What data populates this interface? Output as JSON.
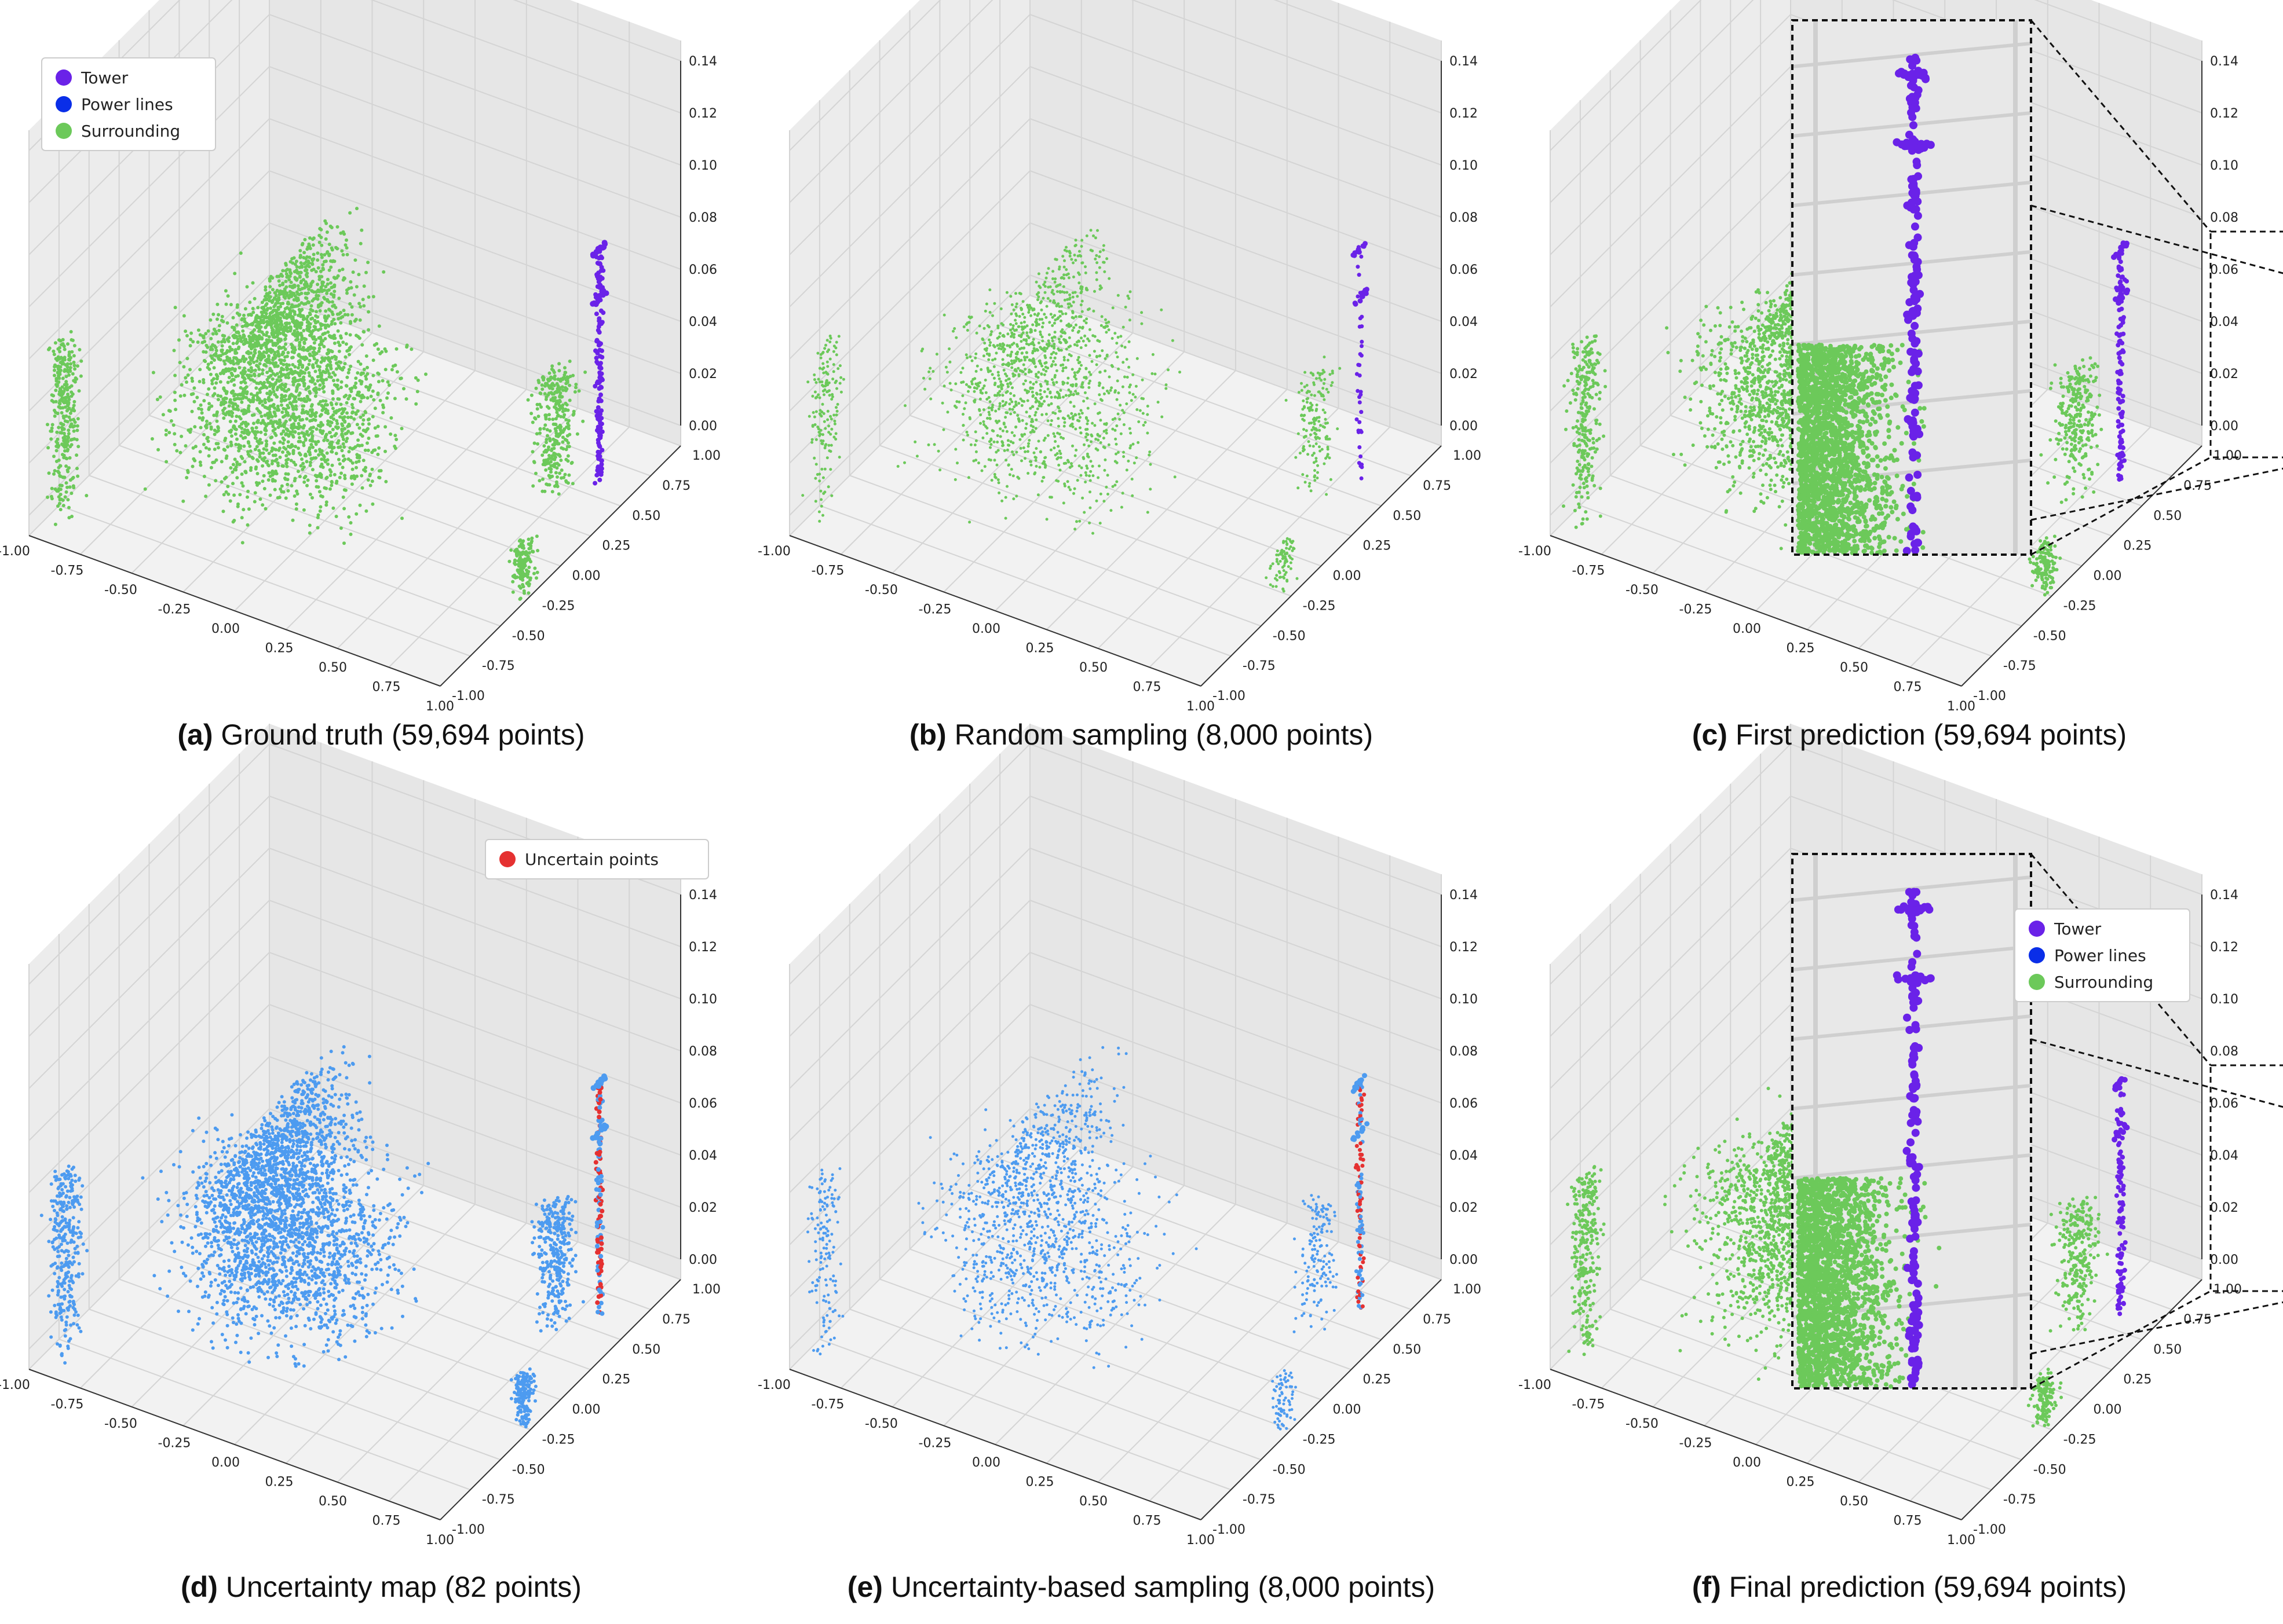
{
  "figure": {
    "colors": {
      "tower": "#6a22e8",
      "power_lines": "#0a2ee8",
      "surrounding": "#6cc95a",
      "blue_cloud": "#4d9bf0",
      "uncertain": "#e53131",
      "pane": "#ececec",
      "grid": "#d4d4d4"
    },
    "legend_main": [
      {
        "label": "Tower",
        "color": "#6a22e8"
      },
      {
        "label": "Power lines",
        "color": "#0a2ee8"
      },
      {
        "label": "Surrounding",
        "color": "#6cc95a"
      }
    ],
    "legend_uncertain": [
      {
        "label": "Uncertain points",
        "color": "#e53131"
      }
    ],
    "panels": [
      {
        "id": "a",
        "label": "(a)",
        "caption": "Ground truth (59,694 points)"
      },
      {
        "id": "b",
        "label": "(b)",
        "caption": "Random sampling (8,000 points)"
      },
      {
        "id": "c",
        "label": "(c)",
        "caption": "First prediction (59,694 points)"
      },
      {
        "id": "d",
        "label": "(d)",
        "caption": "Uncertainty map (82 points)"
      },
      {
        "id": "e",
        "label": "(e)",
        "caption": "Uncertainty-based sampling (8,000 points)"
      },
      {
        "id": "f",
        "label": "(f)",
        "caption": "Final prediction (59,694 points)"
      }
    ]
  },
  "chart_data": [
    {
      "type": "scatter",
      "panel": "a",
      "projection": "3d",
      "point_count": 59694,
      "series": [
        {
          "name": "Tower"
        },
        {
          "name": "Power lines"
        },
        {
          "name": "Surrounding"
        }
      ],
      "x_ticks": [
        "-1.00",
        "-0.75",
        "-0.50",
        "-0.25",
        "0.00",
        "0.25",
        "0.50",
        "0.75",
        "1.00"
      ],
      "y_ticks": [
        "-1.00",
        "-0.75",
        "-0.50",
        "-0.25",
        "0.00",
        "0.25",
        "0.50",
        "0.75",
        "1.00"
      ],
      "z_ticks": [
        "0.00",
        "0.02",
        "0.04",
        "0.06",
        "0.08",
        "0.10",
        "0.12",
        "0.14"
      ],
      "xlim": [
        -1,
        1
      ],
      "ylim": [
        -1,
        1
      ],
      "zlim": [
        0,
        0.14
      ],
      "grid": true,
      "legend": "top-left"
    },
    {
      "type": "scatter",
      "panel": "b",
      "projection": "3d",
      "point_count": 8000,
      "x_ticks": [
        "-1.00",
        "-0.75",
        "-0.50",
        "-0.25",
        "0.00",
        "0.25",
        "0.50",
        "0.75",
        "1.00"
      ],
      "y_ticks": [
        "-1.00",
        "-0.75",
        "-0.50",
        "-0.25",
        "0.00",
        "0.25",
        "0.50",
        "0.75",
        "1.00"
      ],
      "z_ticks": [
        "0.00",
        "0.02",
        "0.04",
        "0.06",
        "0.08",
        "0.10",
        "0.12",
        "0.14"
      ],
      "xlim": [
        -1,
        1
      ],
      "ylim": [
        -1,
        1
      ],
      "zlim": [
        0,
        0.14
      ],
      "grid": true
    },
    {
      "type": "scatter",
      "panel": "c",
      "projection": "3d",
      "point_count": 59694,
      "inset_zoom": true,
      "x_ticks": [
        "-1.00",
        "-0.75",
        "-0.50",
        "-0.25",
        "0.00",
        "0.25",
        "0.50",
        "0.75",
        "1.00"
      ],
      "y_ticks": [
        "-1.00",
        "-0.75",
        "-0.50",
        "-0.25",
        "0.00",
        "0.25",
        "0.50",
        "0.75",
        "1.00"
      ],
      "z_ticks": [
        "0.00",
        "0.02",
        "0.04",
        "0.06",
        "0.08",
        "0.10",
        "0.12",
        "0.14"
      ],
      "xlim": [
        -1,
        1
      ],
      "ylim": [
        -1,
        1
      ],
      "zlim": [
        0,
        0.14
      ],
      "grid": true
    },
    {
      "type": "scatter",
      "panel": "d",
      "projection": "3d",
      "point_count": 82,
      "series": [
        {
          "name": "Uncertain points"
        }
      ],
      "x_ticks": [
        "-1.00",
        "-0.75",
        "-0.50",
        "-0.25",
        "0.00",
        "0.25",
        "0.50",
        "0.75",
        "1.00"
      ],
      "y_ticks": [
        "-1.00",
        "-0.75",
        "-0.50",
        "-0.25",
        "0.00",
        "0.25",
        "0.50",
        "0.75",
        "1.00"
      ],
      "z_ticks": [
        "0.00",
        "0.02",
        "0.04",
        "0.06",
        "0.08",
        "0.10",
        "0.12",
        "0.14"
      ],
      "xlim": [
        -1,
        1
      ],
      "ylim": [
        -1,
        1
      ],
      "zlim": [
        0,
        0.14
      ],
      "grid": true,
      "legend": "top-right"
    },
    {
      "type": "scatter",
      "panel": "e",
      "projection": "3d",
      "point_count": 8000,
      "x_ticks": [
        "-1.00",
        "-0.75",
        "-0.50",
        "-0.25",
        "0.00",
        "0.25",
        "0.50",
        "0.75",
        "1.00"
      ],
      "y_ticks": [
        "-1.00",
        "-0.75",
        "-0.50",
        "-0.25",
        "0.00",
        "0.25",
        "0.50",
        "0.75",
        "1.00"
      ],
      "z_ticks": [
        "0.00",
        "0.02",
        "0.04",
        "0.06",
        "0.08",
        "0.10",
        "0.12",
        "0.14"
      ],
      "xlim": [
        -1,
        1
      ],
      "ylim": [
        -1,
        1
      ],
      "zlim": [
        0,
        0.14
      ],
      "grid": true
    },
    {
      "type": "scatter",
      "panel": "f",
      "projection": "3d",
      "point_count": 59694,
      "inset_zoom": true,
      "series": [
        {
          "name": "Tower"
        },
        {
          "name": "Power lines"
        },
        {
          "name": "Surrounding"
        }
      ],
      "x_ticks": [
        "-1.00",
        "-0.75",
        "-0.50",
        "-0.25",
        "0.00",
        "0.25",
        "0.50",
        "0.75",
        "1.00"
      ],
      "y_ticks": [
        "-1.00",
        "-0.75",
        "-0.50",
        "-0.25",
        "0.00",
        "0.25",
        "0.50",
        "0.75",
        "1.00"
      ],
      "z_ticks": [
        "0.00",
        "0.02",
        "0.04",
        "0.06",
        "0.08",
        "0.10",
        "0.12",
        "0.14"
      ],
      "xlim": [
        -1,
        1
      ],
      "ylim": [
        -1,
        1
      ],
      "zlim": [
        0,
        0.14
      ],
      "grid": true,
      "legend": "top-right"
    }
  ]
}
